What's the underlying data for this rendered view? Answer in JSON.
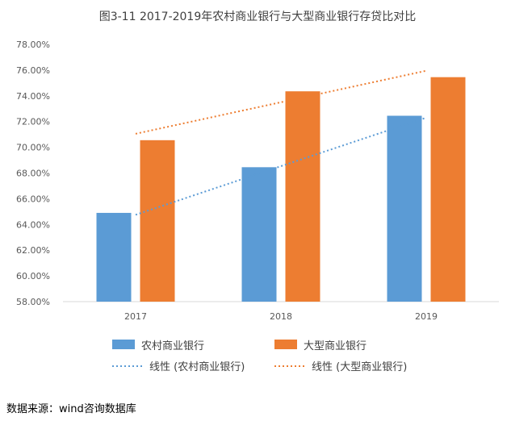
{
  "chart_data": {
    "type": "bar",
    "title": "图3-11 2017-2019年农村商业银行与大型商业银行存贷比对比",
    "categories": [
      "2017",
      "2018",
      "2019"
    ],
    "series": [
      {
        "name": "农村商业银行",
        "values": [
          64.9,
          68.45,
          72.45
        ],
        "color": "#5B9BD5"
      },
      {
        "name": "大型商业银行",
        "values": [
          70.55,
          74.35,
          75.45
        ],
        "color": "#ED7D31"
      }
    ],
    "trendlines": [
      {
        "name": "线性 (农村商业银行)",
        "values": [
          64.75,
          68.53,
          72.3
        ],
        "color": "#5B9BD5"
      },
      {
        "name": "线性 (大型商业银行)",
        "values": [
          71.05,
          73.5,
          75.95
        ],
        "color": "#ED7D31"
      }
    ],
    "ylim": [
      58,
      78
    ],
    "yticks": [
      "58.00%",
      "60.00%",
      "62.00%",
      "64.00%",
      "66.00%",
      "68.00%",
      "70.00%",
      "72.00%",
      "74.00%",
      "76.00%",
      "78.00%"
    ],
    "xlabel": "",
    "ylabel": "",
    "grid": false,
    "legend_position": "bottom"
  },
  "source_text": "数据来源：wind咨询数据库"
}
